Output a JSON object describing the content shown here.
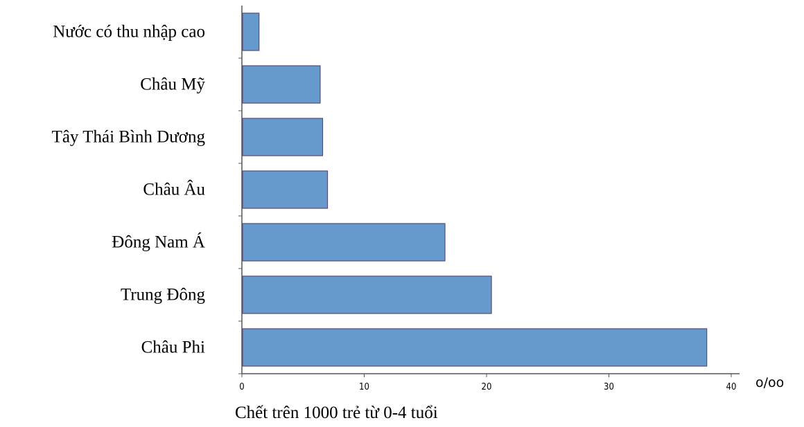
{
  "chart_data": {
    "type": "bar",
    "orientation": "horizontal",
    "categories": [
      "Nước có thu nhập cao",
      "Châu Mỹ",
      "Tây Thái Bình Dương",
      "Châu Âu",
      "Đông Nam Á",
      "Trung Đông",
      "Châu Phi"
    ],
    "values": [
      1.4,
      6.4,
      6.6,
      7.0,
      16.6,
      20.4,
      38.0
    ],
    "xlim": [
      0,
      40
    ],
    "xticks": [
      "0",
      "10",
      "20",
      "30",
      "40"
    ],
    "xunit": "o/oo",
    "xlabel": "Chết trên 1000 trẻ từ 0-4 tuổi",
    "grid": false,
    "bar_color": "#6699cc",
    "bar_edge_color": "#5a4a7a"
  }
}
